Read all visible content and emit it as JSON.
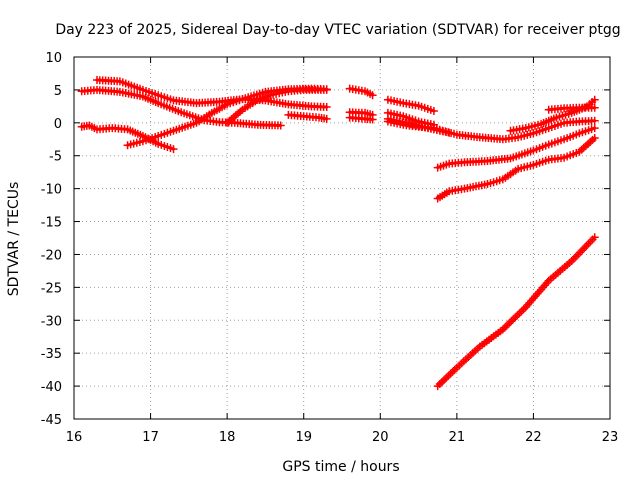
{
  "chart_data": {
    "type": "line",
    "title": "Day 223 of 2025, Sidereal Day-to-day VTEC variation (SDTVAR) for receiver ptgg",
    "xlabel": "GPS time / hours",
    "ylabel": "SDTVAR / TECUs",
    "xlim": [
      16,
      23
    ],
    "ylim": [
      -45,
      10
    ],
    "xticks": [
      16,
      17,
      18,
      19,
      20,
      21,
      22,
      23
    ],
    "yticks": [
      10,
      5,
      0,
      -5,
      -10,
      -15,
      -20,
      -25,
      -30,
      -35,
      -40,
      -45
    ],
    "grid": true,
    "color": "#ff0000",
    "series": [
      {
        "name": "s1",
        "points": [
          [
            16.3,
            6.5
          ],
          [
            16.6,
            6.3
          ],
          [
            16.9,
            5.0
          ],
          [
            17.1,
            4.2
          ],
          [
            17.3,
            3.4
          ],
          [
            17.6,
            3.0
          ],
          [
            17.9,
            3.2
          ],
          [
            18.2,
            3.6
          ],
          [
            18.5,
            3.4
          ],
          [
            18.8,
            2.8
          ],
          [
            19.1,
            2.5
          ],
          [
            19.3,
            2.4
          ]
        ]
      },
      {
        "name": "s2",
        "points": [
          [
            16.1,
            4.8
          ],
          [
            16.3,
            5.0
          ],
          [
            16.6,
            4.7
          ],
          [
            16.9,
            4.0
          ],
          [
            17.1,
            3.0
          ],
          [
            17.4,
            1.6
          ],
          [
            17.7,
            0.4
          ],
          [
            17.9,
            0.1
          ],
          [
            18.1,
            0.0
          ],
          [
            18.4,
            -0.3
          ],
          [
            18.7,
            -0.4
          ]
        ]
      },
      {
        "name": "s3",
        "points": [
          [
            16.1,
            -0.6
          ],
          [
            16.2,
            -0.4
          ],
          [
            16.3,
            -1.0
          ],
          [
            16.5,
            -0.8
          ],
          [
            16.7,
            -1.0
          ],
          [
            16.9,
            -2.0
          ],
          [
            17.1,
            -3.2
          ],
          [
            17.3,
            -4.0
          ]
        ]
      },
      {
        "name": "s4",
        "points": [
          [
            16.7,
            -3.4
          ],
          [
            16.9,
            -2.8
          ],
          [
            17.1,
            -2.0
          ],
          [
            17.3,
            -1.2
          ],
          [
            17.6,
            0.0
          ],
          [
            17.8,
            1.5
          ],
          [
            18.0,
            2.8
          ],
          [
            18.2,
            3.6
          ],
          [
            18.5,
            4.7
          ],
          [
            18.8,
            5.1
          ],
          [
            19.1,
            5.2
          ],
          [
            19.3,
            5.1
          ]
        ]
      },
      {
        "name": "s5",
        "points": [
          [
            18.0,
            0.0
          ],
          [
            18.2,
            2.0
          ],
          [
            18.4,
            3.5
          ],
          [
            18.6,
            4.3
          ],
          [
            18.8,
            4.8
          ],
          [
            19.0,
            5.0
          ],
          [
            19.3,
            5.0
          ]
        ]
      },
      {
        "name": "s6",
        "points": [
          [
            18.8,
            1.2
          ],
          [
            19.0,
            1.0
          ],
          [
            19.2,
            0.8
          ],
          [
            19.3,
            0.6
          ]
        ]
      },
      {
        "name": "s7",
        "points": [
          [
            19.6,
            5.2
          ],
          [
            19.8,
            4.8
          ],
          [
            19.9,
            4.2
          ]
        ]
      },
      {
        "name": "s8",
        "points": [
          [
            19.6,
            0.8
          ],
          [
            19.8,
            0.6
          ],
          [
            19.9,
            0.5
          ]
        ]
      },
      {
        "name": "s9",
        "points": [
          [
            19.6,
            1.6
          ],
          [
            19.8,
            1.5
          ],
          [
            19.9,
            1.2
          ]
        ]
      },
      {
        "name": "s10",
        "points": [
          [
            20.1,
            3.5
          ],
          [
            20.3,
            3.0
          ],
          [
            20.5,
            2.6
          ],
          [
            20.7,
            1.8
          ]
        ]
      },
      {
        "name": "s11",
        "points": [
          [
            20.1,
            1.5
          ],
          [
            20.3,
            1.0
          ],
          [
            20.5,
            0.2
          ],
          [
            20.7,
            -0.3
          ]
        ]
      },
      {
        "name": "s12",
        "points": [
          [
            20.1,
            0.2
          ],
          [
            20.3,
            -0.3
          ],
          [
            20.5,
            -0.6
          ],
          [
            20.7,
            -0.8
          ],
          [
            21.0,
            -1.8
          ],
          [
            21.3,
            -2.2
          ],
          [
            21.6,
            -2.5
          ],
          [
            21.8,
            -2.2
          ],
          [
            22.0,
            -1.6
          ],
          [
            22.2,
            -0.8
          ],
          [
            22.4,
            0.0
          ],
          [
            22.6,
            0.2
          ],
          [
            22.8,
            0.3
          ]
        ]
      },
      {
        "name": "s13",
        "points": [
          [
            20.1,
            0.6
          ],
          [
            20.4,
            -0.2
          ],
          [
            20.7,
            -1.0
          ],
          [
            20.9,
            -1.5
          ]
        ]
      },
      {
        "name": "s14",
        "points": [
          [
            21.7,
            -1.2
          ],
          [
            21.9,
            -0.8
          ],
          [
            22.1,
            -0.2
          ],
          [
            22.3,
            0.8
          ],
          [
            22.5,
            1.5
          ],
          [
            22.7,
            2.5
          ],
          [
            22.8,
            3.5
          ]
        ]
      },
      {
        "name": "s15",
        "points": [
          [
            22.2,
            2.0
          ],
          [
            22.4,
            2.2
          ],
          [
            22.6,
            2.3
          ],
          [
            22.8,
            2.3
          ]
        ]
      },
      {
        "name": "s16",
        "points": [
          [
            20.75,
            -6.8
          ],
          [
            20.9,
            -6.2
          ],
          [
            21.1,
            -6.0
          ],
          [
            21.4,
            -5.8
          ],
          [
            21.7,
            -5.4
          ],
          [
            22.0,
            -4.2
          ],
          [
            22.2,
            -3.3
          ],
          [
            22.4,
            -2.5
          ],
          [
            22.6,
            -1.6
          ],
          [
            22.8,
            -0.8
          ]
        ]
      },
      {
        "name": "s17",
        "points": [
          [
            20.75,
            -11.5
          ],
          [
            20.9,
            -10.4
          ],
          [
            21.1,
            -10.0
          ],
          [
            21.4,
            -9.3
          ],
          [
            21.6,
            -8.6
          ],
          [
            21.8,
            -7.0
          ],
          [
            22.0,
            -6.4
          ],
          [
            22.2,
            -5.6
          ],
          [
            22.4,
            -5.3
          ],
          [
            22.6,
            -4.4
          ],
          [
            22.8,
            -2.3
          ]
        ]
      },
      {
        "name": "s18",
        "points": [
          [
            20.75,
            -40.0
          ],
          [
            21.0,
            -37.2
          ],
          [
            21.3,
            -34.0
          ],
          [
            21.6,
            -31.4
          ],
          [
            21.9,
            -28.0
          ],
          [
            22.2,
            -24.0
          ],
          [
            22.5,
            -21.0
          ],
          [
            22.8,
            -17.4
          ]
        ]
      }
    ]
  }
}
